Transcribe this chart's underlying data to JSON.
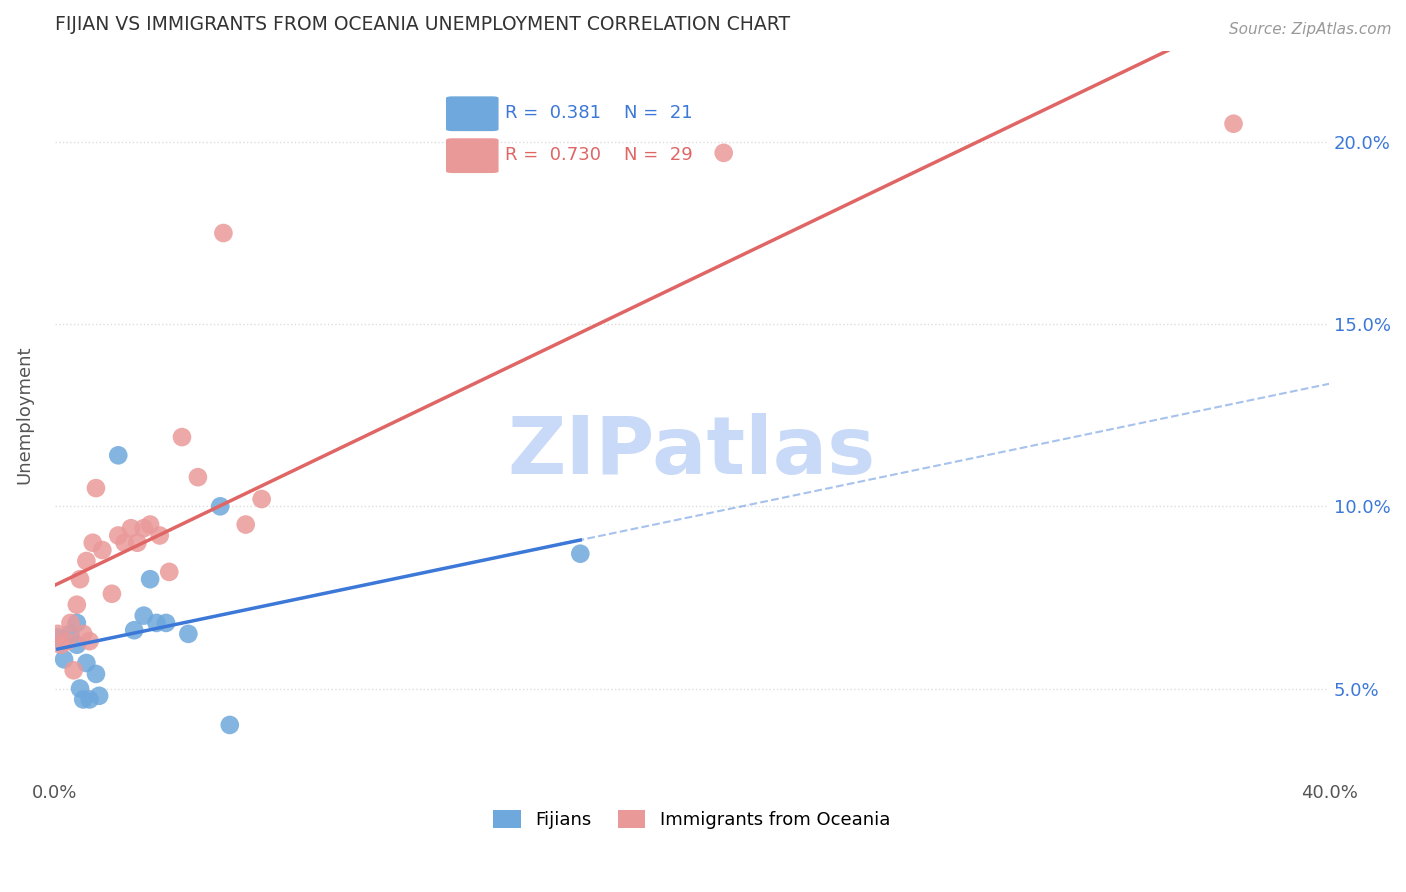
{
  "title": "FIJIAN VS IMMIGRANTS FROM OCEANIA UNEMPLOYMENT CORRELATION CHART",
  "source": "Source: ZipAtlas.com",
  "xlabel": "",
  "ylabel": "Unemployment",
  "xlim": [
    0.0,
    0.4
  ],
  "ylim": [
    0.025,
    0.225
  ],
  "yticks": [
    0.05,
    0.1,
    0.15,
    0.2
  ],
  "ytick_labels": [
    "5.0%",
    "10.0%",
    "15.0%",
    "20.0%"
  ],
  "xticks": [
    0.0,
    0.05,
    0.1,
    0.15,
    0.2,
    0.25,
    0.3,
    0.35,
    0.4
  ],
  "xtick_labels": [
    "0.0%",
    "",
    "",
    "",
    "",
    "",
    "",
    "",
    "40.0%"
  ],
  "legend_R_fijian": "0.381",
  "legend_N_fijian": "21",
  "legend_R_oceania": "0.730",
  "legend_N_oceania": "29",
  "fijian_color": "#6fa8dc",
  "oceania_color": "#ea9999",
  "fijian_line_color": "#3c78d8",
  "oceania_line_color": "#e06666",
  "watermark_color": "#c9daf8",
  "background_color": "#ffffff",
  "fijians_x": [
    0.001,
    0.003,
    0.005,
    0.007,
    0.007,
    0.008,
    0.009,
    0.01,
    0.011,
    0.013,
    0.014,
    0.02,
    0.025,
    0.028,
    0.03,
    0.032,
    0.035,
    0.042,
    0.052,
    0.055,
    0.165
  ],
  "fijians_y": [
    0.064,
    0.058,
    0.065,
    0.068,
    0.062,
    0.05,
    0.047,
    0.057,
    0.047,
    0.054,
    0.048,
    0.114,
    0.066,
    0.07,
    0.08,
    0.068,
    0.068,
    0.065,
    0.1,
    0.04,
    0.087
  ],
  "oceania_x": [
    0.001,
    0.002,
    0.004,
    0.005,
    0.006,
    0.007,
    0.008,
    0.009,
    0.01,
    0.011,
    0.012,
    0.013,
    0.015,
    0.018,
    0.02,
    0.022,
    0.024,
    0.026,
    0.028,
    0.03,
    0.033,
    0.036,
    0.04,
    0.045,
    0.053,
    0.06,
    0.065,
    0.21,
    0.37
  ],
  "oceania_y": [
    0.065,
    0.062,
    0.063,
    0.068,
    0.055,
    0.073,
    0.08,
    0.065,
    0.085,
    0.063,
    0.09,
    0.105,
    0.088,
    0.076,
    0.092,
    0.09,
    0.094,
    0.09,
    0.094,
    0.095,
    0.092,
    0.082,
    0.119,
    0.108,
    0.175,
    0.095,
    0.102,
    0.197,
    0.205
  ]
}
